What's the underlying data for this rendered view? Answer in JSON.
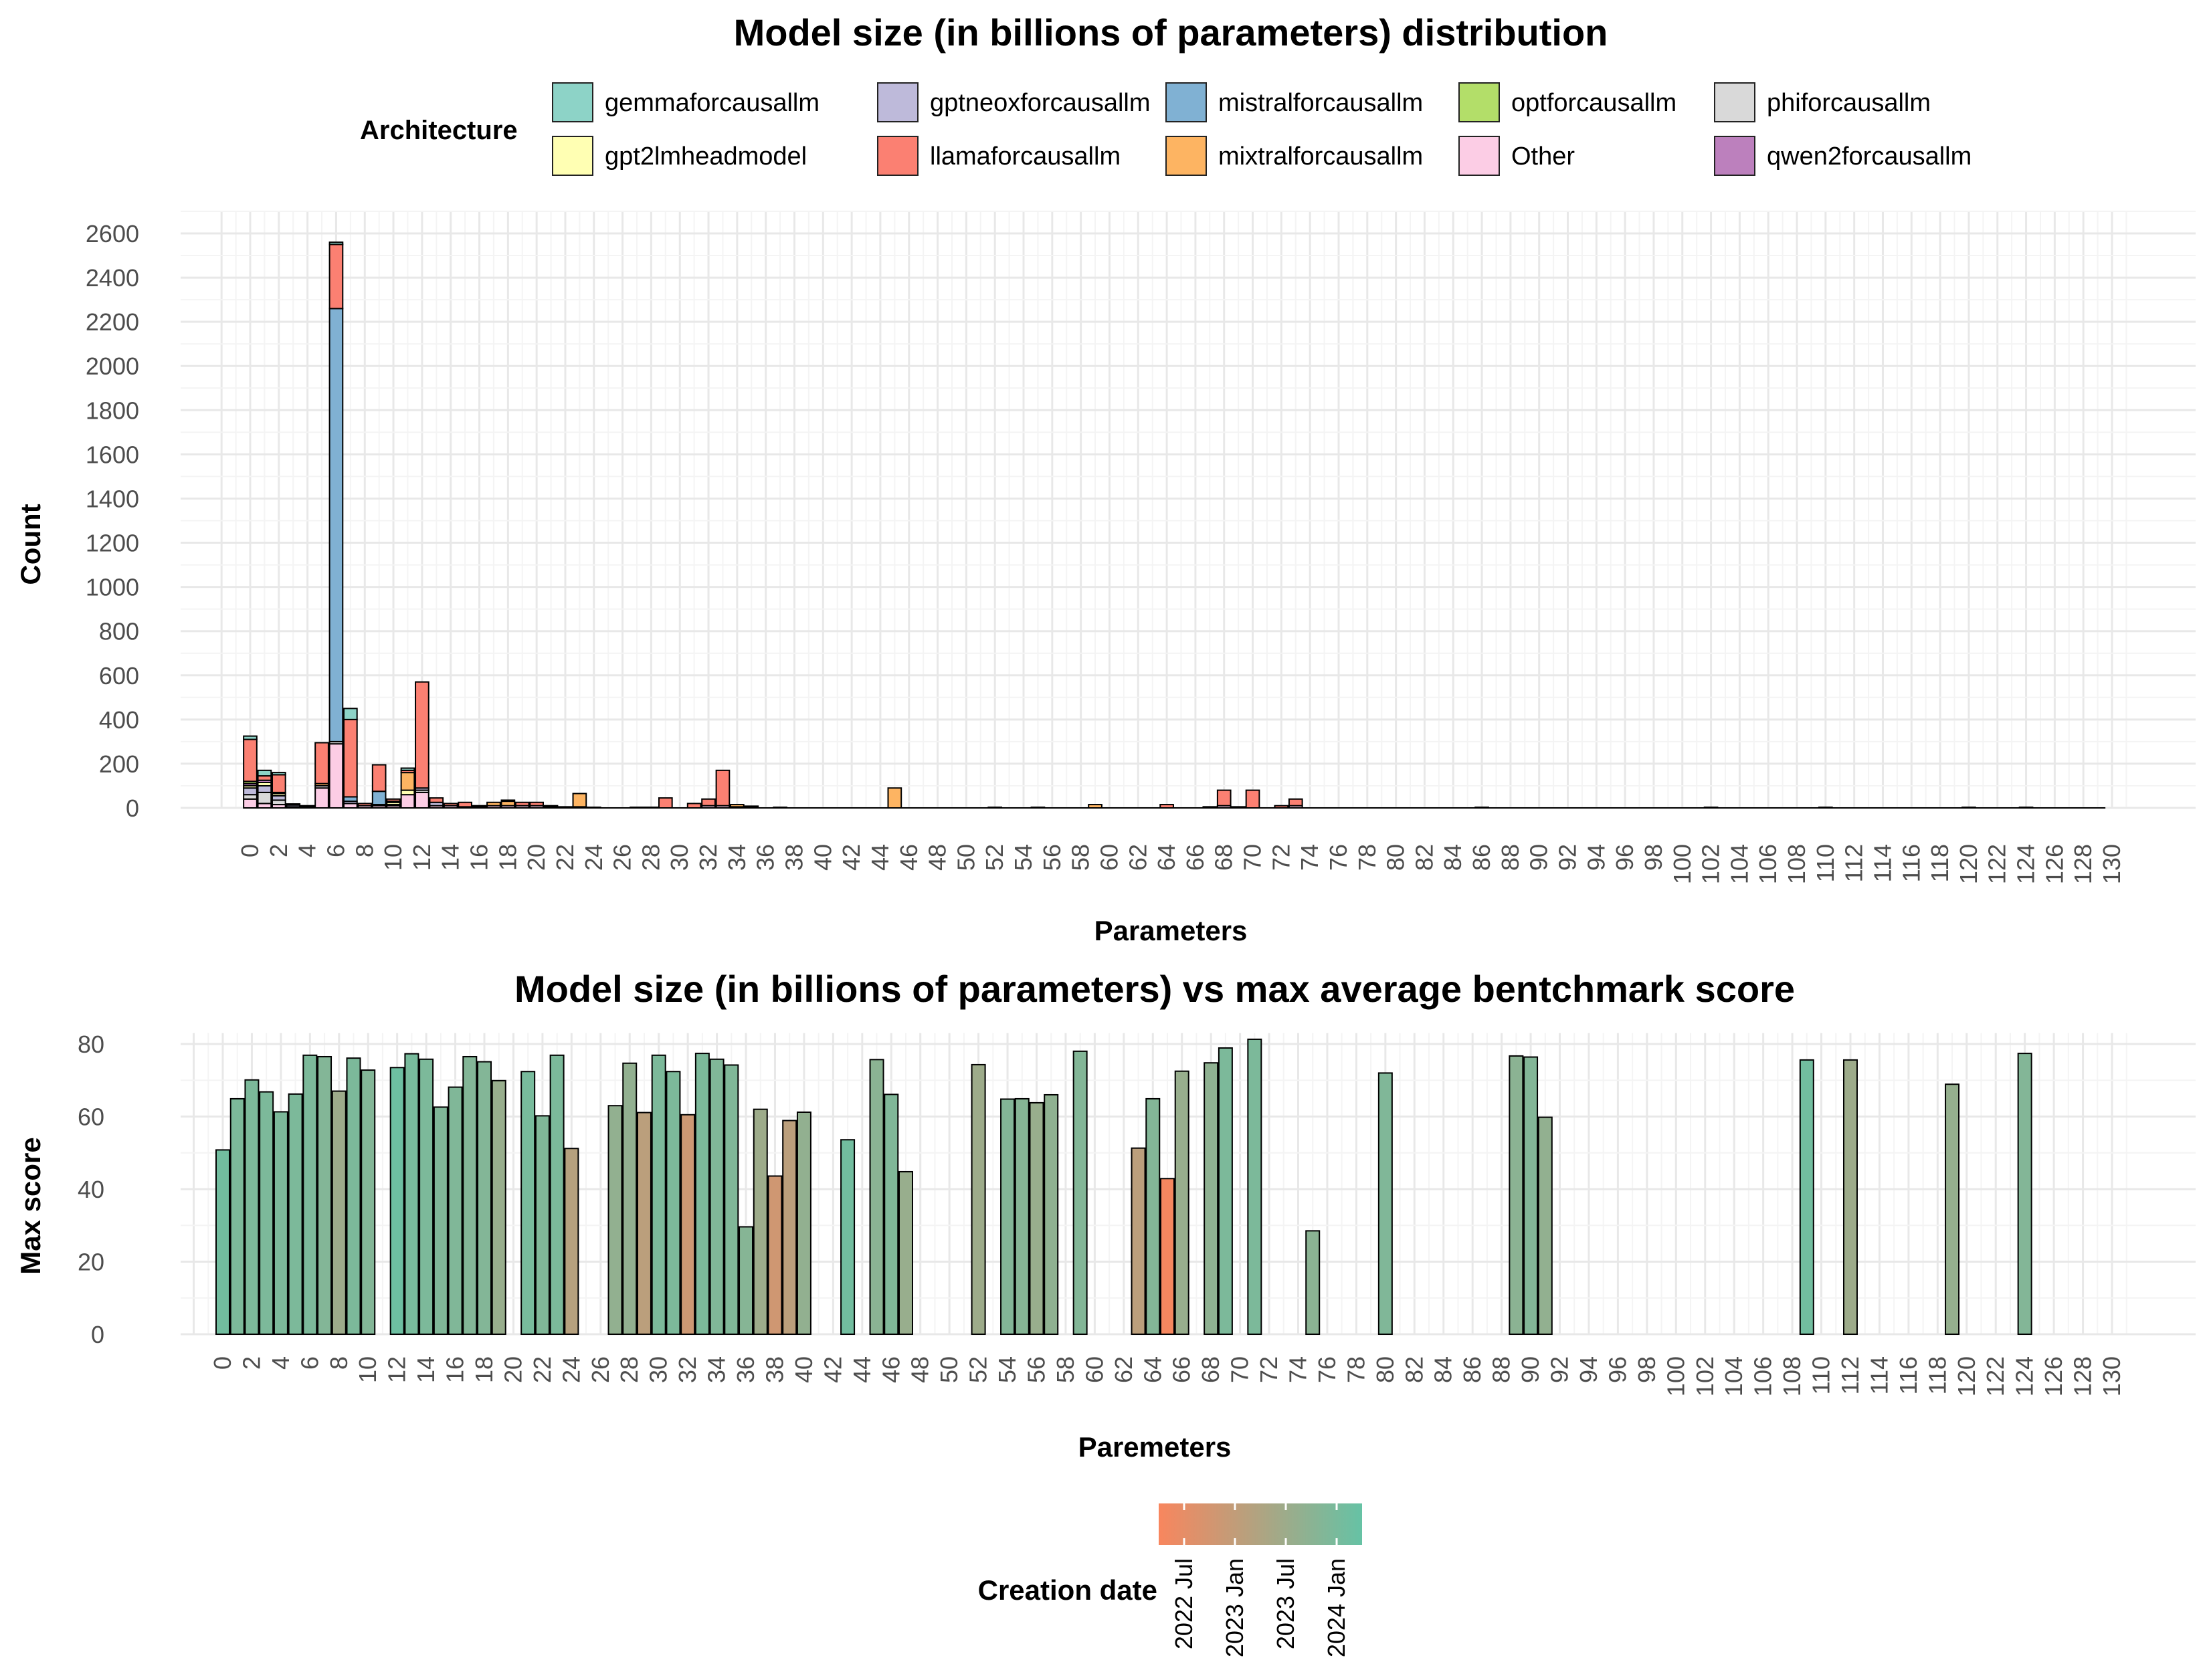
{
  "top_chart": {
    "title": "Model size (in billions of parameters) distribution",
    "legend_title": "Architecture",
    "legend_items": [
      {
        "label": "gemmaforcausallm",
        "color": "#8DD3C7"
      },
      {
        "label": "gptneoxforcausallm",
        "color": "#BEBADA"
      },
      {
        "label": "mistralforcausallm",
        "color": "#80B1D3"
      },
      {
        "label": "optforcausallm",
        "color": "#B3DE69"
      },
      {
        "label": "phiforcausallm",
        "color": "#D9D9D9"
      },
      {
        "label": "gpt2lmheadmodel",
        "color": "#FFFFB3"
      },
      {
        "label": "llamaforcausallm",
        "color": "#FB8072"
      },
      {
        "label": "mixtralforcausallm",
        "color": "#FDB462"
      },
      {
        "label": "Other",
        "color": "#FCCDE5"
      },
      {
        "label": "qwen2forcausallm",
        "color": "#BC80BD"
      }
    ],
    "xlabel": "Parameters",
    "ylabel": "Count",
    "yticks": [
      0,
      200,
      400,
      600,
      800,
      1000,
      1200,
      1400,
      1600,
      1800,
      2000,
      2200,
      2400,
      2600
    ]
  },
  "bottom_chart": {
    "title": "Model size (in billions of parameters) vs max average bentchmark score",
    "xlabel": "Paremeters",
    "ylabel": "Max score",
    "yticks": [
      0,
      20,
      40,
      60,
      80
    ]
  },
  "colorbar": {
    "title": "Creation date",
    "labels": [
      "2022 Jul",
      "2023 Jan",
      "2023 Jul",
      "2024 Jan"
    ],
    "color_low": "#F8865E",
    "color_high": "#66C2A5"
  },
  "chart_data": [
    {
      "type": "bar",
      "stacked": true,
      "title": "Model size (in billions of parameters) distribution",
      "xlabel": "Parameters",
      "ylabel": "Count",
      "xlim": [
        -2,
        131
      ],
      "ylim": [
        0,
        2700
      ],
      "x_ticks_step": 2,
      "grid": true,
      "legend_position": "top",
      "series_order": [
        "Other",
        "phiforcausallm",
        "gptneoxforcausallm",
        "gpt2lmheadmodel",
        "qwen2forcausallm",
        "optforcausallm",
        "mistralforcausallm",
        "mixtralforcausallm",
        "llamaforcausallm",
        "gemmaforcausallm"
      ],
      "bins": [
        {
          "x": 0,
          "stack": {
            "Other": 40,
            "phiforcausallm": 20,
            "gptneoxforcausallm": 30,
            "gpt2lmheadmodel": 10,
            "qwen2forcausallm": 10,
            "optforcausallm": 10,
            "llamaforcausallm": 190,
            "gemmaforcausallm": 15
          }
        },
        {
          "x": 1,
          "stack": {
            "Other": 20,
            "phiforcausallm": 50,
            "gptneoxforcausallm": 30,
            "gpt2lmheadmodel": 15,
            "qwen2forcausallm": 10,
            "llamaforcausallm": 20,
            "gemmaforcausallm": 25
          }
        },
        {
          "x": 2,
          "stack": {
            "Other": 15,
            "phiforcausallm": 20,
            "gptneoxforcausallm": 20,
            "gpt2lmheadmodel": 10,
            "qwen2forcausallm": 5,
            "llamaforcausallm": 80,
            "gemmaforcausallm": 10
          }
        },
        {
          "x": 3,
          "stack": {
            "Other": 5,
            "gptneoxforcausallm": 8,
            "llamaforcausallm": 5
          }
        },
        {
          "x": 4,
          "stack": {
            "Other": 5,
            "qwen2forcausallm": 5
          }
        },
        {
          "x": 5,
          "stack": {
            "Other": 90,
            "phiforcausallm": 10,
            "mixtralforcausallm": 10,
            "llamaforcausallm": 185
          }
        },
        {
          "x": 6,
          "stack": {
            "Other": 290,
            "phiforcausallm": 10,
            "mistralforcausallm": 1960,
            "llamaforcausallm": 290,
            "gemmaforcausallm": 10
          }
        },
        {
          "x": 7,
          "stack": {
            "Other": 20,
            "gptneoxforcausallm": 10,
            "mistralforcausallm": 20,
            "llamaforcausallm": 350,
            "gemmaforcausallm": 50
          }
        },
        {
          "x": 8,
          "stack": {
            "Other": 10,
            "llamaforcausallm": 10
          }
        },
        {
          "x": 9,
          "stack": {
            "Other": 10,
            "gptneoxforcausallm": 5,
            "mistralforcausallm": 60,
            "llamaforcausallm": 120
          }
        },
        {
          "x": 10,
          "stack": {
            "Other": 10,
            "phiforcausallm": 5,
            "gpt2lmheadmodel": 10,
            "mistralforcausallm": 5,
            "llamaforcausallm": 10
          }
        },
        {
          "x": 11,
          "stack": {
            "Other": 60,
            "gpt2lmheadmodel": 20,
            "mixtralforcausallm": 80,
            "llamaforcausallm": 10,
            "gemmaforcausallm": 10
          }
        },
        {
          "x": 12,
          "stack": {
            "Other": 70,
            "phiforcausallm": 10,
            "gptneoxforcausallm": 10,
            "llamaforcausallm": 480
          }
        },
        {
          "x": 13,
          "stack": {
            "Other": 10,
            "gptneoxforcausallm": 15,
            "llamaforcausallm": 20
          }
        },
        {
          "x": 14,
          "stack": {
            "Other": 10,
            "llamaforcausallm": 10
          }
        },
        {
          "x": 15,
          "stack": {
            "Other": 5,
            "llamaforcausallm": 20
          }
        },
        {
          "x": 16,
          "stack": {
            "Other": 5,
            "llamaforcausallm": 5
          }
        },
        {
          "x": 17,
          "stack": {
            "Other": 10,
            "mixtralforcausallm": 15
          }
        },
        {
          "x": 18,
          "stack": {
            "Other": 10,
            "mixtralforcausallm": 20,
            "llamaforcausallm": 5
          }
        },
        {
          "x": 19,
          "stack": {
            "Other": 10,
            "llamaforcausallm": 15
          }
        },
        {
          "x": 20,
          "stack": {
            "Other": 10,
            "llamaforcausallm": 15
          }
        },
        {
          "x": 21,
          "stack": {
            "Other": 5,
            "llamaforcausallm": 5
          }
        },
        {
          "x": 22,
          "stack": {
            "llamaforcausallm": 5
          }
        },
        {
          "x": 23,
          "stack": {
            "Other": 5,
            "mixtralforcausallm": 60
          }
        },
        {
          "x": 24,
          "stack": {
            "llamaforcausallm": 3
          }
        },
        {
          "x": 27,
          "stack": {
            "llamaforcausallm": 3
          }
        },
        {
          "x": 28,
          "stack": {
            "llamaforcausallm": 3
          }
        },
        {
          "x": 29,
          "stack": {
            "llamaforcausallm": 45
          }
        },
        {
          "x": 31,
          "stack": {
            "llamaforcausallm": 20
          }
        },
        {
          "x": 32,
          "stack": {
            "Other": 10,
            "llamaforcausallm": 30
          }
        },
        {
          "x": 33,
          "stack": {
            "Other": 10,
            "llamaforcausallm": 160
          }
        },
        {
          "x": 34,
          "stack": {
            "Other": 5,
            "mixtralforcausallm": 10
          }
        },
        {
          "x": 35,
          "stack": {
            "Other": 5,
            "llamaforcausallm": 3
          }
        },
        {
          "x": 37,
          "stack": {
            "llamaforcausallm": 3
          }
        },
        {
          "x": 45,
          "stack": {
            "mixtralforcausallm": 90
          }
        },
        {
          "x": 52,
          "stack": {
            "llamaforcausallm": 3
          }
        },
        {
          "x": 55,
          "stack": {
            "llamaforcausallm": 3
          }
        },
        {
          "x": 59,
          "stack": {
            "mixtralforcausallm": 15
          }
        },
        {
          "x": 64,
          "stack": {
            "llamaforcausallm": 15
          }
        },
        {
          "x": 67,
          "stack": {
            "llamaforcausallm": 5
          }
        },
        {
          "x": 68,
          "stack": {
            "Other": 10,
            "llamaforcausallm": 70
          }
        },
        {
          "x": 69,
          "stack": {
            "llamaforcausallm": 5
          }
        },
        {
          "x": 70,
          "stack": {
            "llamaforcausallm": 80
          }
        },
        {
          "x": 72,
          "stack": {
            "llamaforcausallm": 10
          }
        },
        {
          "x": 73,
          "stack": {
            "Other": 10,
            "llamaforcausallm": 30
          }
        },
        {
          "x": 86,
          "stack": {
            "llamaforcausallm": 3
          }
        },
        {
          "x": 102,
          "stack": {
            "llamaforcausallm": 3
          }
        },
        {
          "x": 110,
          "stack": {
            "llamaforcausallm": 3
          }
        },
        {
          "x": 120,
          "stack": {
            "llamaforcausallm": 3
          }
        },
        {
          "x": 124,
          "stack": {
            "llamaforcausallm": 3
          }
        }
      ]
    },
    {
      "type": "bar",
      "title": "Model size (in billions of parameters) vs max average bentchmark score",
      "xlabel": "Paremeters",
      "ylabel": "Max score",
      "xlim": [
        -2,
        131
      ],
      "ylim": [
        0,
        83
      ],
      "x_ticks_step": 2,
      "grid": true,
      "color_encoding": "Creation date (0 = 2022 Jul … 1 = 2024 Jan)",
      "points": [
        {
          "x": 0,
          "y": 50.8,
          "t": 0.92
        },
        {
          "x": 1,
          "y": 64.9,
          "t": 0.85
        },
        {
          "x": 2,
          "y": 70.1,
          "t": 0.85
        },
        {
          "x": 3,
          "y": 66.8,
          "t": 0.85
        },
        {
          "x": 4,
          "y": 61.3,
          "t": 0.85
        },
        {
          "x": 5,
          "y": 66.2,
          "t": 0.85
        },
        {
          "x": 6,
          "y": 76.9,
          "t": 0.85
        },
        {
          "x": 7,
          "y": 76.5,
          "t": 0.8
        },
        {
          "x": 8,
          "y": 67.0,
          "t": 0.62
        },
        {
          "x": 9,
          "y": 76.1,
          "t": 0.85
        },
        {
          "x": 10,
          "y": 72.8,
          "t": 0.8
        },
        {
          "x": 12,
          "y": 73.5,
          "t": 0.95
        },
        {
          "x": 13,
          "y": 77.3,
          "t": 0.88
        },
        {
          "x": 14,
          "y": 75.8,
          "t": 0.85
        },
        {
          "x": 15,
          "y": 62.6,
          "t": 0.82
        },
        {
          "x": 16,
          "y": 68.1,
          "t": 0.82
        },
        {
          "x": 17,
          "y": 76.5,
          "t": 0.8
        },
        {
          "x": 18,
          "y": 75.1,
          "t": 0.8
        },
        {
          "x": 19,
          "y": 69.9,
          "t": 0.66
        },
        {
          "x": 21,
          "y": 72.4,
          "t": 0.88
        },
        {
          "x": 22,
          "y": 60.2,
          "t": 0.82
        },
        {
          "x": 23,
          "y": 76.9,
          "t": 0.85
        },
        {
          "x": 24,
          "y": 51.2,
          "t": 0.45
        },
        {
          "x": 27,
          "y": 63.0,
          "t": 0.7
        },
        {
          "x": 28,
          "y": 74.7,
          "t": 0.7
        },
        {
          "x": 29,
          "y": 61.1,
          "t": 0.42
        },
        {
          "x": 30,
          "y": 76.9,
          "t": 0.85
        },
        {
          "x": 31,
          "y": 72.4,
          "t": 0.85
        },
        {
          "x": 32,
          "y": 60.5,
          "t": 0.3
        },
        {
          "x": 33,
          "y": 77.4,
          "t": 0.85
        },
        {
          "x": 34,
          "y": 75.8,
          "t": 0.82
        },
        {
          "x": 35,
          "y": 74.2,
          "t": 0.82
        },
        {
          "x": 36,
          "y": 29.6,
          "t": 0.78
        },
        {
          "x": 37,
          "y": 62.0,
          "t": 0.62
        },
        {
          "x": 38,
          "y": 43.6,
          "t": 0.28
        },
        {
          "x": 39,
          "y": 58.9,
          "t": 0.42
        },
        {
          "x": 40,
          "y": 61.2,
          "t": 0.7
        },
        {
          "x": 43,
          "y": 53.6,
          "t": 0.92
        },
        {
          "x": 45,
          "y": 75.7,
          "t": 0.75
        },
        {
          "x": 46,
          "y": 66.1,
          "t": 0.82
        },
        {
          "x": 47,
          "y": 44.8,
          "t": 0.66
        },
        {
          "x": 52,
          "y": 74.3,
          "t": 0.62
        },
        {
          "x": 54,
          "y": 64.8,
          "t": 0.8
        },
        {
          "x": 55,
          "y": 64.9,
          "t": 0.78
        },
        {
          "x": 56,
          "y": 63.8,
          "t": 0.66
        },
        {
          "x": 57,
          "y": 66.0,
          "t": 0.72
        },
        {
          "x": 59,
          "y": 78.0,
          "t": 0.8
        },
        {
          "x": 63,
          "y": 51.3,
          "t": 0.42
        },
        {
          "x": 64,
          "y": 64.9,
          "t": 0.8
        },
        {
          "x": 65,
          "y": 42.9,
          "t": 0.02
        },
        {
          "x": 66,
          "y": 72.5,
          "t": 0.66
        },
        {
          "x": 68,
          "y": 74.8,
          "t": 0.72
        },
        {
          "x": 69,
          "y": 78.9,
          "t": 0.85
        },
        {
          "x": 71,
          "y": 81.3,
          "t": 0.85
        },
        {
          "x": 75,
          "y": 28.5,
          "t": 0.75
        },
        {
          "x": 80,
          "y": 72.0,
          "t": 0.82
        },
        {
          "x": 89,
          "y": 76.7,
          "t": 0.75
        },
        {
          "x": 90,
          "y": 76.4,
          "t": 0.8
        },
        {
          "x": 91,
          "y": 59.8,
          "t": 0.7
        },
        {
          "x": 109,
          "y": 75.6,
          "t": 0.92
        },
        {
          "x": 112,
          "y": 75.6,
          "t": 0.62
        },
        {
          "x": 119,
          "y": 68.9,
          "t": 0.68
        },
        {
          "x": 124,
          "y": 77.4,
          "t": 0.8
        }
      ]
    }
  ]
}
